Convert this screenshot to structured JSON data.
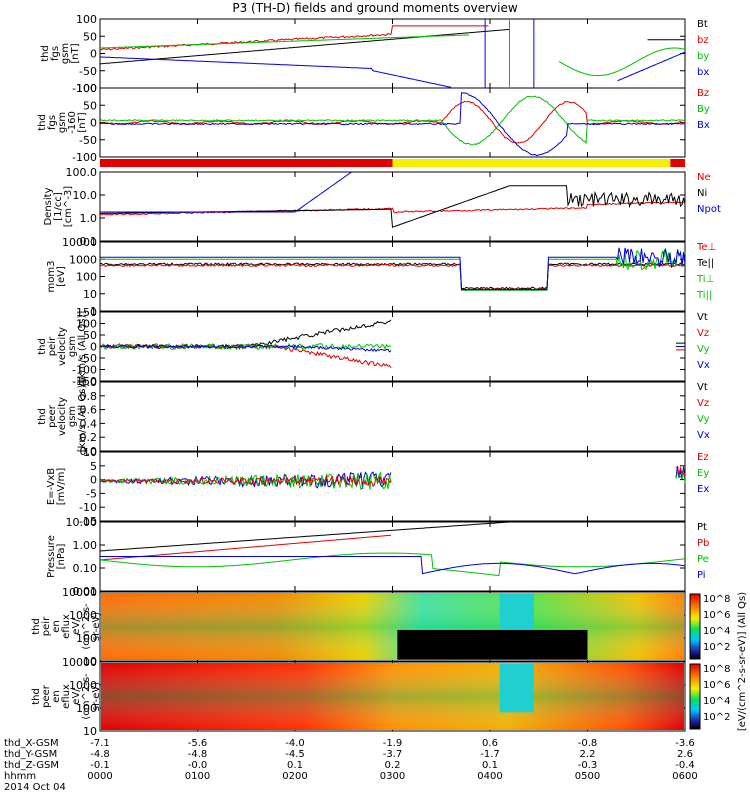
{
  "title": "P3 (TH-D) fields and ground moments overview",
  "chart_data": {
    "type": "line",
    "panels": [
      {
        "ylabel": [
          "thd",
          "fgs",
          "gsm",
          "[nT]"
        ],
        "yticks": [
          "100",
          "50",
          "0",
          "-50",
          "-100"
        ],
        "legend": [
          {
            "name": "Bt",
            "color": "#000000"
          },
          {
            "name": "bz",
            "color": "#e00000"
          },
          {
            "name": "by",
            "color": "#00c000"
          },
          {
            "name": "bx",
            "color": "#0000e0"
          }
        ]
      },
      {
        "ylabel": [
          "thd",
          "fgs",
          "gsm",
          "-160",
          "[nT]"
        ],
        "yticks": [
          "100",
          "50",
          "0",
          "-50",
          "-100"
        ],
        "legend": [
          {
            "name": "Bz",
            "color": "#e00000"
          },
          {
            "name": "By",
            "color": "#00c000"
          },
          {
            "name": "Bx",
            "color": "#0000e0"
          }
        ]
      },
      {
        "ylabel": [
          "Density",
          "[1/cc]",
          "[cm^-3]"
        ],
        "yticks": [
          "100.0",
          "10.0",
          "1.0",
          "0.1"
        ],
        "legend": [
          {
            "name": "Ne",
            "color": "#e00000"
          },
          {
            "name": "Ni",
            "color": "#000000"
          },
          {
            "name": "Npot",
            "color": "#0000e0"
          }
        ]
      },
      {
        "ylabel": [
          "mom3",
          "[eV]"
        ],
        "yticks": [
          "10000",
          "1000",
          "100",
          "10",
          "1"
        ],
        "legend": [
          {
            "name": "Te⊥",
            "color": "#e00000"
          },
          {
            "name": "Te||",
            "color": "#000000"
          },
          {
            "name": "Ti⊥",
            "color": "#00c000"
          },
          {
            "name": "Ti||",
            "color": "#00c000"
          }
        ]
      },
      {
        "ylabel": [
          "thd",
          "peir",
          "velocity",
          "gsm",
          "[km/s (All Qs)]"
        ],
        "yticks": [
          "150",
          "100",
          "50",
          "0",
          "-50",
          "-100",
          "-150"
        ],
        "legend": [
          {
            "name": "Vt",
            "color": "#000000"
          },
          {
            "name": "Vz",
            "color": "#e00000"
          },
          {
            "name": "Vy",
            "color": "#00c000"
          },
          {
            "name": "Vx",
            "color": "#0000e0"
          }
        ]
      },
      {
        "ylabel": [
          "thd",
          "peer",
          "velocity",
          "gsm",
          "[km/s (All Qs)]"
        ],
        "yticks": [
          "1.0",
          "0.8",
          "0.6",
          "0.4",
          "0.2",
          "0.0"
        ],
        "legend": [
          {
            "name": "Vt",
            "color": "#000000"
          },
          {
            "name": "Vz",
            "color": "#e00000"
          },
          {
            "name": "Vy",
            "color": "#00c000"
          },
          {
            "name": "Vx",
            "color": "#0000e0"
          }
        ]
      },
      {
        "ylabel": [
          "E=-VxB",
          "[mV/m]"
        ],
        "yticks": [
          "10",
          "5",
          "0",
          "-5",
          "-10",
          "-15"
        ],
        "legend": [
          {
            "name": "Ez",
            "color": "#e00000"
          },
          {
            "name": "Ey",
            "color": "#00c000"
          },
          {
            "name": "Ex",
            "color": "#0000e0"
          }
        ]
      },
      {
        "ylabel": [
          "Pressure",
          "[nPa]"
        ],
        "yticks": [
          "10.00",
          "1.00",
          "0.10",
          "0.01"
        ],
        "legend": [
          {
            "name": "Pt",
            "color": "#000000"
          },
          {
            "name": "Pb",
            "color": "#e00000"
          },
          {
            "name": "Pe",
            "color": "#00c000"
          },
          {
            "name": "Pi",
            "color": "#0000e0"
          }
        ]
      },
      {
        "ylabel": [
          "thd",
          "peir",
          "en",
          "eflux",
          "eV/",
          "(cm^2-s-",
          "sr-eV)"
        ],
        "yticks": [
          "10000",
          "1000",
          "100",
          "10"
        ],
        "colorbar_ticks": [
          "10^8",
          "10^6",
          "10^4",
          "10^2"
        ]
      },
      {
        "ylabel": [
          "thd",
          "peer",
          "en",
          "eflux",
          "eV/",
          "(cm^2-s-",
          "sr-eV)"
        ],
        "yticks": [
          "10000",
          "1000",
          "100",
          "10"
        ],
        "colorbar_ticks": [
          "10^8",
          "10^6",
          "10^4",
          "10^2"
        ]
      }
    ],
    "colorbar_label": "[eV/(cm^2-s-sr-eV)] (All Qs)",
    "x_rows": [
      {
        "label": "thd_X-GSM",
        "values": [
          "-7.1",
          "-5.6",
          "-4.0",
          "-1.9",
          "0.6",
          "-0.8",
          "-3.6"
        ]
      },
      {
        "label": "thd_Y-GSM",
        "values": [
          "-4.8",
          "-4.8",
          "-4.5",
          "-3.7",
          "-1.7",
          "2.2",
          "2.6"
        ]
      },
      {
        "label": "thd_Z-GSM",
        "values": [
          "-0.1",
          "-0.0",
          "0.1",
          "0.2",
          "0.1",
          "-0.3",
          "-0.4"
        ]
      },
      {
        "label": "hhmm",
        "values": [
          "0000",
          "0100",
          "0200",
          "0300",
          "0400",
          "0500",
          "0600"
        ]
      }
    ],
    "date": "2014 Oct 04"
  }
}
